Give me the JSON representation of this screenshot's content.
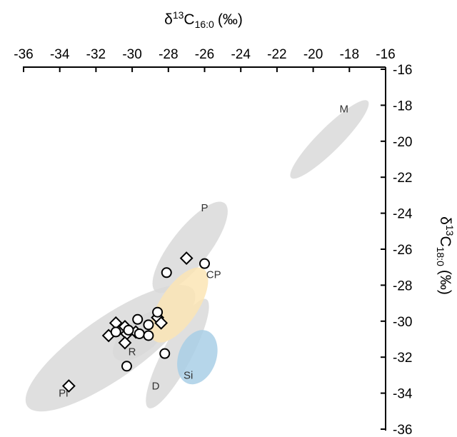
{
  "chart_data": {
    "type": "scatter",
    "title": "",
    "xlabel": {
      "prefix": "δ",
      "sup": "13",
      "base": "C",
      "sub": "16:0",
      "unit": "(‰)"
    },
    "ylabel": {
      "prefix": "δ",
      "sup": "13",
      "base": "C",
      "sub": "18:0",
      "unit": "(‰)"
    },
    "xlim": [
      -36,
      -16
    ],
    "ylim": [
      -36,
      -16
    ],
    "x_axis_position": "top",
    "y_axis_position": "right",
    "y_inverted": true,
    "grid": false,
    "x_ticks": [
      "-36",
      "-34",
      "-32",
      "-30",
      "-28",
      "-26",
      "-24",
      "-22",
      "-20",
      "-18",
      "-16"
    ],
    "y_ticks": [
      "-16",
      "-18",
      "-20",
      "-22",
      "-24",
      "-26",
      "-28",
      "-30",
      "-32",
      "-34",
      "-36"
    ],
    "regions": [
      {
        "label": "M",
        "cx": -19.1,
        "cy": -19.9,
        "rx": 3.0,
        "ry": 0.65,
        "angle": -45,
        "color": "#d9d9d9",
        "label_x": -18.3,
        "label_y": -18.4
      },
      {
        "label": "P",
        "cx": -26.8,
        "cy": -25.9,
        "rx": 3.1,
        "ry": 1.05,
        "angle": -52,
        "color": "#d9d9d9",
        "label_x": -26.0,
        "label_y": -23.9
      },
      {
        "label": "Pl",
        "cx": -31.2,
        "cy": -31.5,
        "rx": 5.6,
        "ry": 1.7,
        "angle": -35,
        "color": "#d9d9d9",
        "label_x": -33.8,
        "label_y": -34.2
      },
      {
        "label": "R",
        "cx": -29.5,
        "cy": -30.8,
        "rx": 1.9,
        "ry": 0.9,
        "angle": -40,
        "color": "#d9d9d9",
        "label_x": -30.0,
        "label_y": -31.9
      },
      {
        "label": "D",
        "cx": -27.5,
        "cy": -31.8,
        "rx": 3.4,
        "ry": 0.8,
        "angle": -62,
        "color": "#d9d9d9",
        "label_x": -28.7,
        "label_y": -33.8
      },
      {
        "label": "CP",
        "cx": -27.4,
        "cy": -29.1,
        "rx": 2.4,
        "ry": 1.05,
        "angle": -56,
        "color": "#fce5b5",
        "label_x": -25.5,
        "label_y": -27.6
      },
      {
        "label": "Si",
        "cx": -26.4,
        "cy": -32.0,
        "rx": 1.55,
        "ry": 1.05,
        "angle": -70,
        "color": "#a9cfe6",
        "label_x": -26.9,
        "label_y": -33.2
      }
    ],
    "series": [
      {
        "marker": "diamond",
        "points": [
          {
            "x": -33.5,
            "y": -33.6
          },
          {
            "x": -31.3,
            "y": -30.8
          },
          {
            "x": -30.9,
            "y": -30.1
          },
          {
            "x": -30.4,
            "y": -30.3
          },
          {
            "x": -30.3,
            "y": -30.7
          },
          {
            "x": -30.4,
            "y": -31.2
          },
          {
            "x": -29.8,
            "y": -30.6
          },
          {
            "x": -28.6,
            "y": -29.8
          },
          {
            "x": -28.4,
            "y": -30.1
          },
          {
            "x": -27.0,
            "y": -26.5
          }
        ]
      },
      {
        "marker": "circle",
        "points": [
          {
            "x": -30.9,
            "y": -30.6
          },
          {
            "x": -30.2,
            "y": -30.5
          },
          {
            "x": -29.7,
            "y": -29.9
          },
          {
            "x": -29.6,
            "y": -30.7
          },
          {
            "x": -29.1,
            "y": -30.2
          },
          {
            "x": -29.1,
            "y": -30.8
          },
          {
            "x": -28.6,
            "y": -29.5
          },
          {
            "x": -28.2,
            "y": -31.8
          },
          {
            "x": -28.1,
            "y": -27.3
          },
          {
            "x": -26.0,
            "y": -26.8
          },
          {
            "x": -30.3,
            "y": -32.5
          }
        ]
      }
    ]
  }
}
